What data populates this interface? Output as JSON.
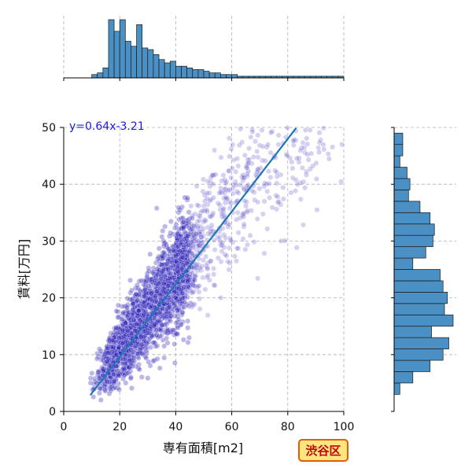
{
  "chart_data": {
    "type": "scatter",
    "title": "",
    "xlabel": "専有面積[m2]",
    "ylabel": "賃料[万円]",
    "xlim": [
      0,
      100
    ],
    "ylim": [
      0,
      50
    ],
    "x_ticks": [
      "0",
      "20",
      "40",
      "60",
      "80",
      "100"
    ],
    "y_ticks": [
      "0",
      "10",
      "20",
      "30",
      "40",
      "50"
    ],
    "grid": true,
    "regression": {
      "slope": 0.64,
      "intercept": -3.21,
      "label": "y=0.64x-3.21",
      "x_range": [
        9.5,
        83
      ]
    },
    "scatter_color": "#2b1fb8",
    "line_color": "#1f77b4",
    "hist_color": "#4a90c4",
    "badge": {
      "label": "渋谷区",
      "fill": "#ffe680",
      "stroke": "#e65c00",
      "text_color": "#c00000"
    },
    "x_hist": {
      "bin_start": 10,
      "bin_width": 2,
      "counts": [
        2,
        3,
        6,
        35,
        28,
        35,
        22,
        19,
        32,
        18,
        17,
        14,
        11,
        9,
        10,
        7,
        7,
        6,
        5,
        5,
        4,
        3,
        3,
        2,
        2,
        2,
        1,
        1,
        1,
        1,
        1,
        1,
        1,
        1,
        1,
        1,
        1,
        1,
        1,
        1,
        1,
        1,
        1,
        1,
        1
      ]
    },
    "y_hist": {
      "bin_start": 3,
      "bin_width": 2,
      "counts": [
        4,
        13,
        25,
        34,
        38,
        26,
        41,
        35,
        37,
        34,
        32,
        13,
        22,
        27,
        28,
        25,
        18,
        10,
        11,
        9,
        4,
        6,
        6,
        4,
        4,
        3,
        3,
        2,
        2,
        3
      ]
    }
  }
}
